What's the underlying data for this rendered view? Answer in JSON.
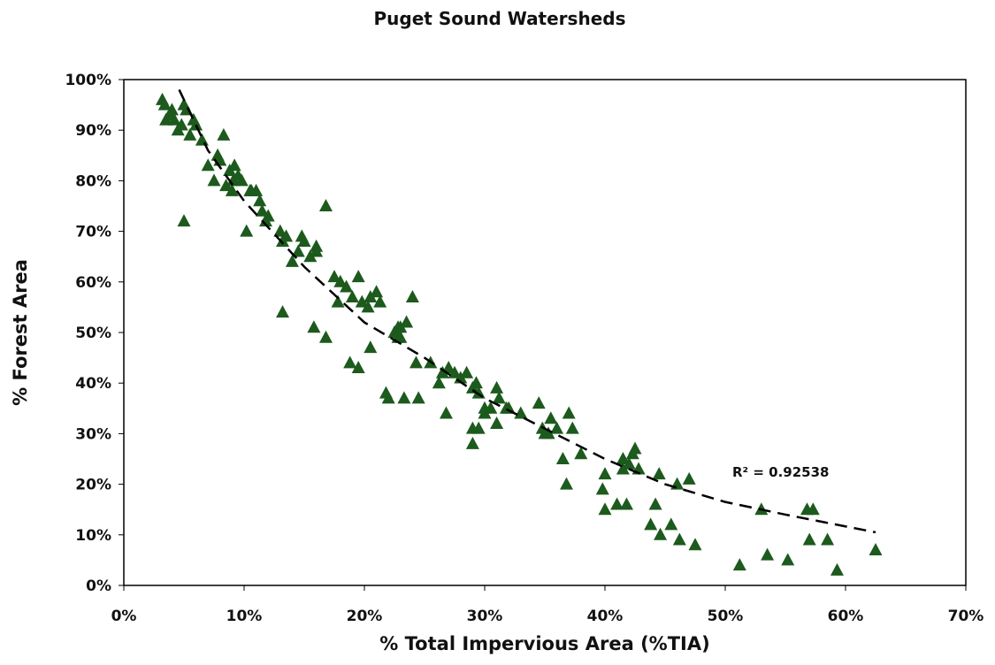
{
  "chart_data": {
    "type": "scatter",
    "title": "Puget Sound Watersheds",
    "x_label": "% Total Impervious Area (%TIA)",
    "y_label": "% Forest Area",
    "annotation": "R² = 0.92538",
    "xlim": [
      0,
      70
    ],
    "ylim": [
      0,
      100
    ],
    "xticks": [
      {
        "value": 0,
        "label": "0%"
      },
      {
        "value": 10,
        "label": "10%"
      },
      {
        "value": 20,
        "label": "20%"
      },
      {
        "value": 30,
        "label": "30%"
      },
      {
        "value": 40,
        "label": "40%"
      },
      {
        "value": 50,
        "label": "50%"
      },
      {
        "value": 60,
        "label": "60%"
      },
      {
        "value": 70,
        "label": "70%"
      }
    ],
    "yticks": [
      {
        "value": 0,
        "label": "0%"
      },
      {
        "value": 10,
        "label": "10%"
      },
      {
        "value": 20,
        "label": "20%"
      },
      {
        "value": 30,
        "label": "30%"
      },
      {
        "value": 40,
        "label": "40%"
      },
      {
        "value": 50,
        "label": "50%"
      },
      {
        "value": 60,
        "label": "60%"
      },
      {
        "value": 70,
        "label": "70%"
      },
      {
        "value": 80,
        "label": "80%"
      },
      {
        "value": 90,
        "label": "90%"
      },
      {
        "value": 100,
        "label": "100%"
      }
    ],
    "grid": false,
    "color": "#1d5a1d",
    "x": [
      3.2,
      3.4,
      3.5,
      3.8,
      4,
      4.2,
      4.5,
      4.8,
      5,
      5.2,
      5.5,
      5.8,
      6,
      6.5,
      7,
      7.5,
      7.8,
      8,
      8.3,
      8.5,
      8.8,
      9,
      9.2,
      9.5,
      9.8,
      5,
      10.2,
      10.5,
      11,
      11.3,
      11.5,
      11.8,
      12,
      13,
      13.2,
      13.5,
      14,
      14.5,
      14.8,
      15,
      15.5,
      16,
      16.8,
      13.2,
      15.8,
      16.8,
      17.5,
      17.8,
      18,
      18.5,
      19,
      19.5,
      19.8,
      20.3,
      20.5,
      21,
      21.3,
      18.8,
      19.5,
      20.5,
      21.8,
      22,
      22.5,
      22.8,
      23,
      23.5,
      23.3,
      24,
      24.3,
      24.5,
      25.5,
      26.2,
      26.5,
      26.8,
      27,
      27.5,
      28,
      28.5,
      29,
      29.3,
      29.5,
      29,
      29,
      29.5,
      30,
      30.5,
      31,
      31.2,
      31.8,
      33,
      34.5,
      34.8,
      35,
      35.5,
      36,
      36.5,
      36.8,
      37,
      37.3,
      38,
      39.8,
      40,
      40,
      41,
      41.5,
      41.8,
      41.5,
      42,
      42.5,
      42.8,
      43.8,
      44.2,
      44.5,
      44.6,
      45.5,
      46,
      46.2,
      47,
      47.5,
      51.2,
      53,
      53.5,
      55.2,
      56.8,
      57,
      57.3,
      58.5,
      59.3,
      62.5,
      30,
      31,
      32,
      35.3,
      42.3,
      23,
      22.8,
      16,
      10.6,
      9.1
    ],
    "values": [
      96,
      95,
      92,
      93,
      94,
      92,
      90,
      91,
      95,
      94,
      89,
      92,
      91,
      88,
      83,
      80,
      85,
      84,
      89,
      79,
      82,
      78,
      83,
      81,
      80,
      72,
      70,
      78,
      78,
      76,
      74,
      72,
      73,
      70,
      68,
      69,
      64,
      66,
      69,
      68,
      65,
      67,
      75,
      54,
      51,
      49,
      61,
      56,
      60,
      59,
      57,
      61,
      56,
      55,
      57,
      58,
      56,
      44,
      43,
      47,
      38,
      37,
      50,
      49,
      51,
      52,
      37,
      57,
      44,
      37,
      44,
      40,
      42,
      34,
      43,
      42,
      41,
      42,
      39,
      40,
      38,
      31,
      28,
      31,
      34,
      35,
      39,
      37,
      35,
      34,
      36,
      31,
      30,
      33,
      31,
      25,
      20,
      34,
      31,
      26,
      19,
      22,
      15,
      16,
      25,
      16,
      23,
      24,
      27,
      23,
      12,
      16,
      22,
      10,
      12,
      20,
      9,
      21,
      8,
      4,
      15,
      6,
      5,
      15,
      9,
      15,
      9,
      3,
      7,
      35,
      32,
      35,
      30,
      26,
      49,
      51,
      66,
      78,
      80
    ],
    "trendline": {
      "x": [
        4.6,
        7,
        10,
        15,
        20,
        25,
        30,
        35,
        40,
        45,
        50,
        55,
        62.5
      ],
      "values": [
        98,
        86,
        76,
        63,
        52,
        45,
        37,
        31,
        25,
        20,
        16.5,
        14,
        10.5
      ]
    }
  }
}
